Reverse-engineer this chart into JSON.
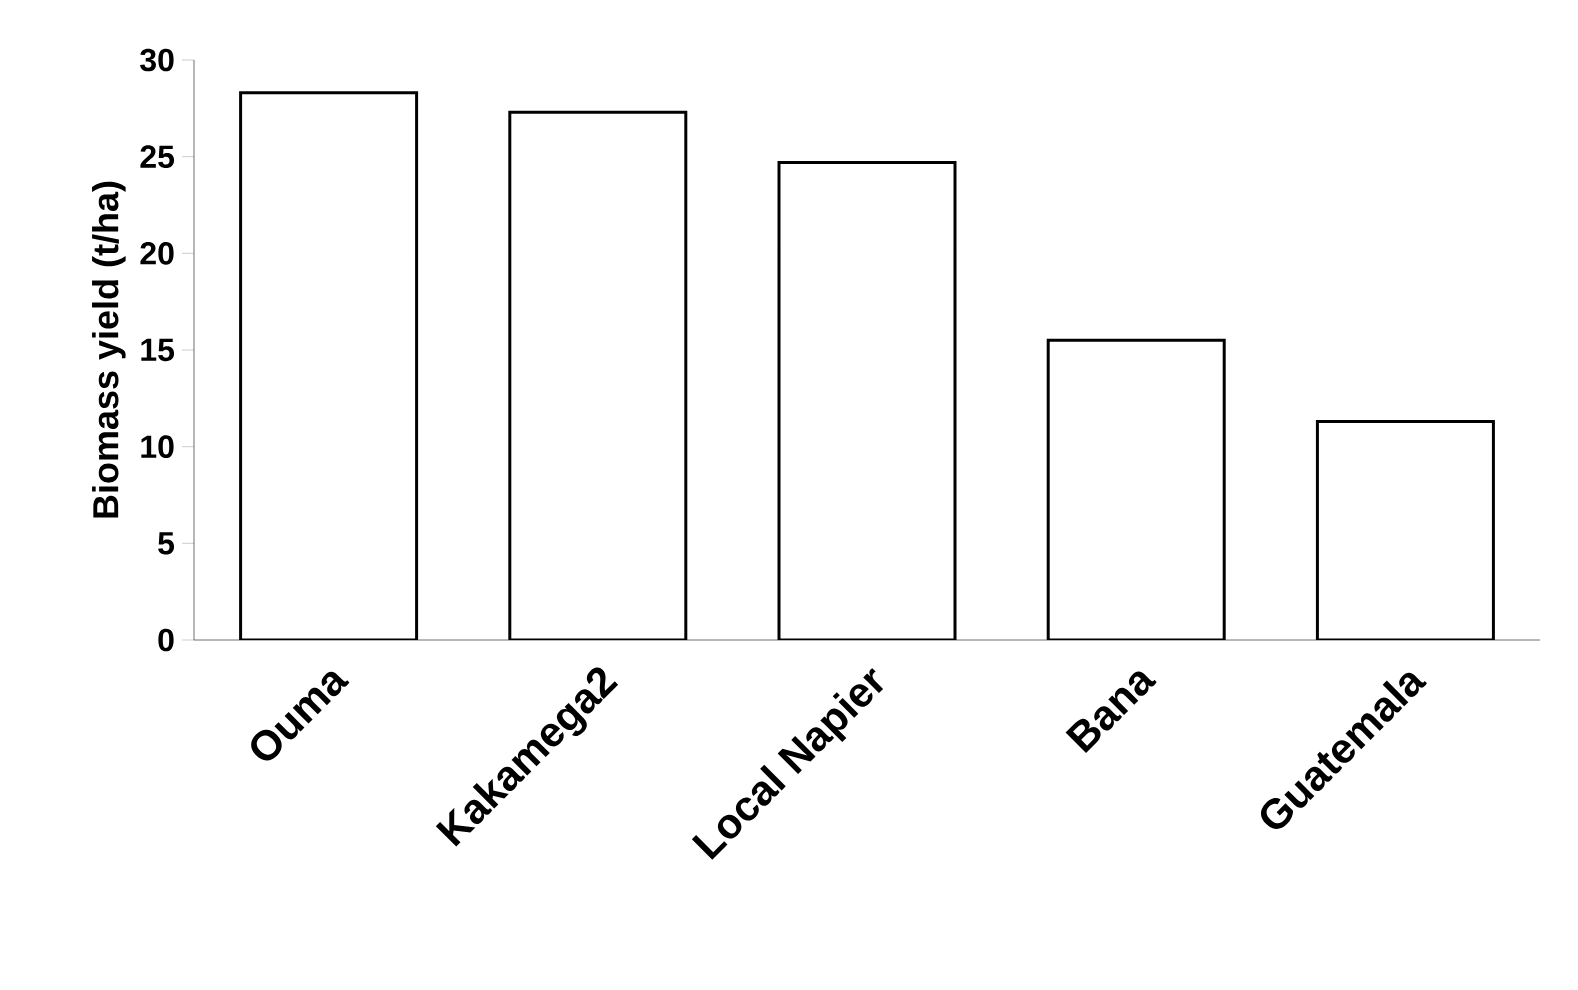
{
  "chart_data": {
    "type": "bar",
    "ylabel": "Biomass yield (t/ha)",
    "categories": [
      "Ouma",
      "Kakamega2",
      "Local Napier",
      "Bana",
      "Guatemala"
    ],
    "values": [
      28.3,
      27.3,
      24.7,
      15.5,
      11.3
    ],
    "color": "#ffffff",
    "ylim": [
      0,
      30
    ],
    "yticks": [
      0,
      5,
      10,
      15,
      20,
      25,
      30
    ]
  }
}
